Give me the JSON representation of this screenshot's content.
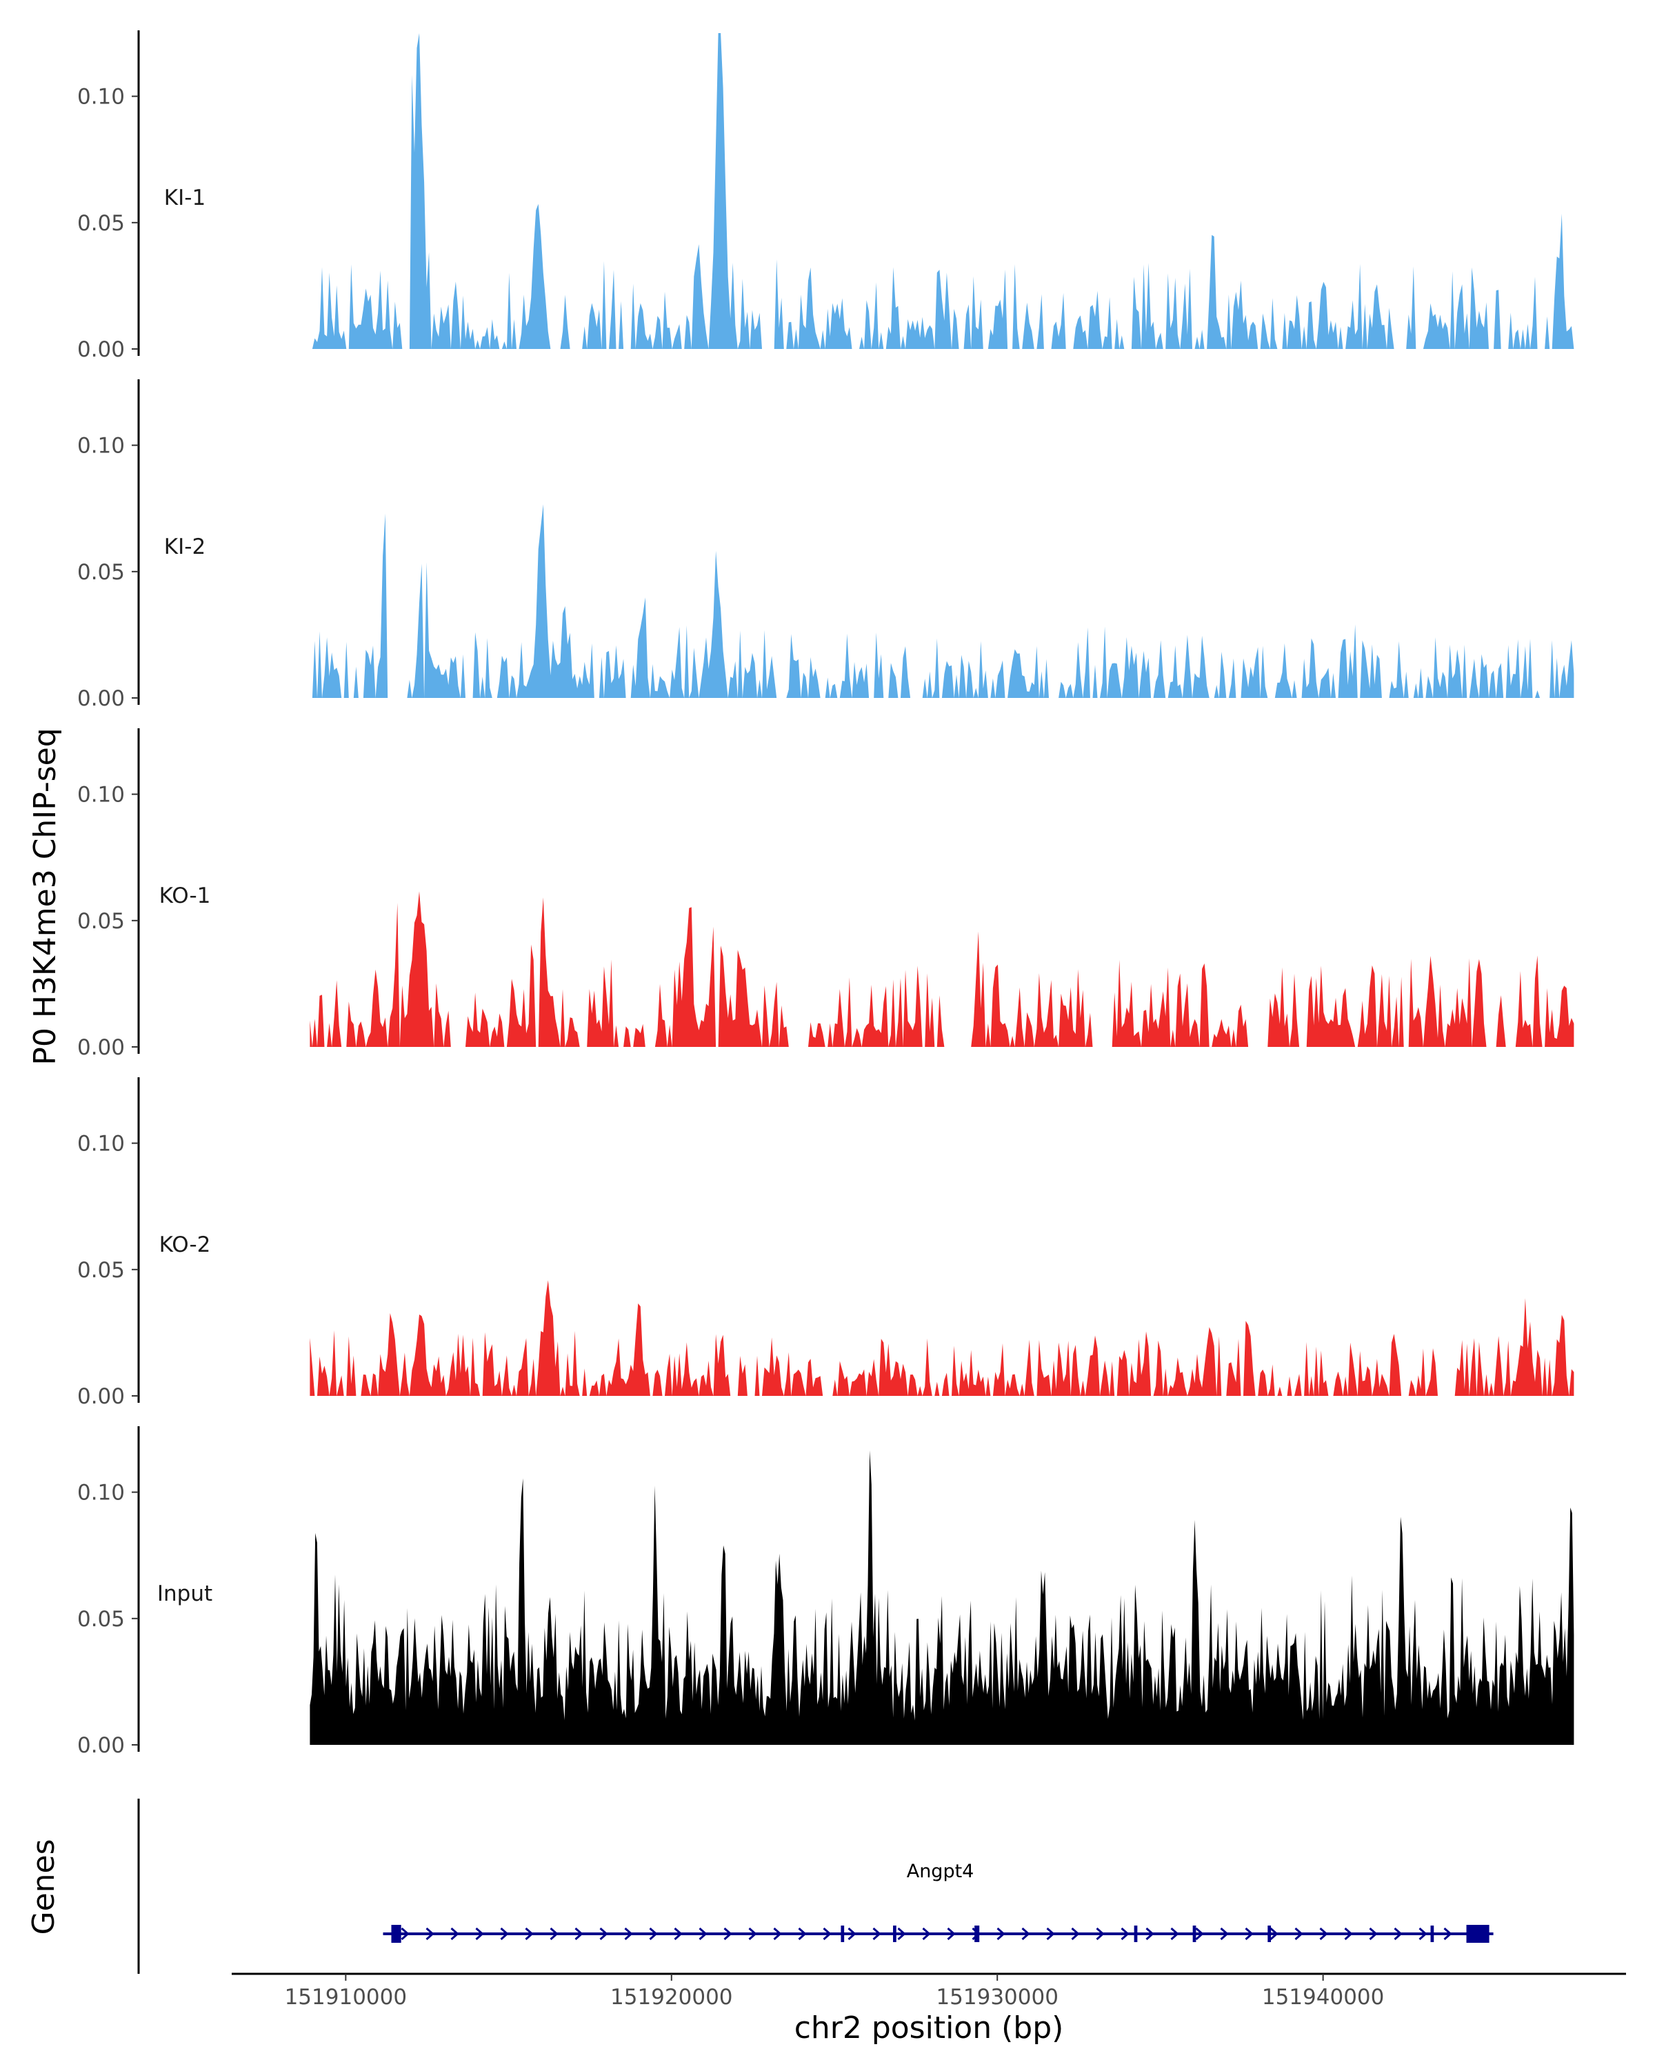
{
  "chart_data": {
    "type": "area",
    "ylabel": "P0 H3K4me3 ChIP-seq",
    "xlabel": "chr2 position (bp)",
    "xlim": [
      151906500,
      151949300
    ],
    "data_x_range": [
      151908900,
      151947700
    ],
    "ylim": [
      0,
      0.125
    ],
    "y_ticks": [
      0.0,
      0.05,
      0.1
    ],
    "y_tick_labels": [
      "0.00",
      "0.05",
      "0.10"
    ],
    "x_ticks": [
      151910000,
      151920000,
      151930000,
      151940000
    ],
    "x_tick_labels": [
      "151910000",
      "151920000",
      "151930000",
      "151940000"
    ],
    "grid": false,
    "colors": {
      "KI": "#5dade8",
      "KO": "#ee2a2a",
      "Input": "#000000",
      "gene": "#00008b"
    },
    "series": [
      {
        "name": "KI-1",
        "color": "#5dade8",
        "seed": 11,
        "bins": 520,
        "peakiness": 0.6,
        "gapRate": 0.28,
        "background": 0.006,
        "noise": 0.018,
        "peaks": [
          [
            151912300,
            0.104,
            140
          ],
          [
            151911900,
            0.062,
            160
          ],
          [
            151912100,
            0.065,
            140
          ],
          [
            151915900,
            0.061,
            180
          ],
          [
            151921500,
            0.127,
            190
          ],
          [
            151920800,
            0.034,
            180
          ],
          [
            151936600,
            0.045,
            90
          ],
          [
            151947300,
            0.032,
            90
          ]
        ]
      },
      {
        "name": "KI-2",
        "color": "#5dade8",
        "seed": 23,
        "bins": 520,
        "peakiness": 0.5,
        "gapRate": 0.22,
        "background": 0.006,
        "noise": 0.014,
        "peaks": [
          [
            151911200,
            0.054,
            110
          ],
          [
            151912400,
            0.048,
            170
          ],
          [
            151916000,
            0.074,
            170
          ],
          [
            151916700,
            0.035,
            110
          ],
          [
            151921400,
            0.046,
            170
          ],
          [
            151919100,
            0.028,
            130
          ],
          [
            151941200,
            0.02,
            120
          ]
        ]
      },
      {
        "name": "KO-1",
        "color": "#ee2a2a",
        "seed": 37,
        "bins": 520,
        "peakiness": 0.5,
        "gapRate": 0.2,
        "background": 0.007,
        "noise": 0.018,
        "peaks": [
          [
            151912200,
            0.053,
            200
          ],
          [
            151911600,
            0.05,
            150
          ],
          [
            151916000,
            0.048,
            220
          ],
          [
            151920500,
            0.047,
            160
          ],
          [
            151921400,
            0.055,
            230
          ],
          [
            151922200,
            0.026,
            150
          ],
          [
            151929400,
            0.035,
            90
          ],
          [
            151941500,
            0.028,
            100
          ],
          [
            151943300,
            0.031,
            110
          ],
          [
            151944800,
            0.037,
            100
          ]
        ]
      },
      {
        "name": "KO-2",
        "color": "#ee2a2a",
        "seed": 41,
        "bins": 520,
        "peakiness": 0.45,
        "gapRate": 0.18,
        "background": 0.006,
        "noise": 0.012,
        "peaks": [
          [
            151911400,
            0.024,
            170
          ],
          [
            151912300,
            0.03,
            150
          ],
          [
            151916200,
            0.041,
            190
          ],
          [
            151919000,
            0.022,
            110
          ],
          [
            151936500,
            0.028,
            100
          ],
          [
            151937700,
            0.023,
            110
          ],
          [
            151946200,
            0.024,
            120
          ],
          [
            151947300,
            0.026,
            100
          ]
        ]
      },
      {
        "name": "Input",
        "color": "#000000",
        "seed": 53,
        "bins": 700,
        "peakiness": 0.0,
        "gapRate": 0.0,
        "background": 0.024,
        "noise": 0.038,
        "peaks": [
          [
            151909100,
            0.093,
            60
          ],
          [
            151915400,
            0.086,
            80
          ],
          [
            151919500,
            0.095,
            70
          ],
          [
            151921600,
            0.08,
            70
          ],
          [
            151926100,
            0.089,
            80
          ],
          [
            151936100,
            0.072,
            80
          ],
          [
            151942400,
            0.082,
            70
          ],
          [
            151947600,
            0.096,
            80
          ],
          [
            151923300,
            0.06,
            120
          ],
          [
            151931400,
            0.055,
            120
          ]
        ]
      }
    ],
    "genes_panel": {
      "title": "Genes",
      "gene": "Angpt4",
      "start": 151911400,
      "end": 151945100,
      "strand": "+",
      "exons": [
        [
          151911400,
          151911700
        ],
        [
          151925200,
          151925300
        ],
        [
          151926800,
          151926900
        ],
        [
          151929300,
          151929450
        ],
        [
          151934200,
          151934300
        ],
        [
          151936000,
          151936100
        ],
        [
          151938300,
          151938400
        ],
        [
          151943300,
          151943400
        ],
        [
          151944400,
          151945100
        ]
      ]
    }
  }
}
